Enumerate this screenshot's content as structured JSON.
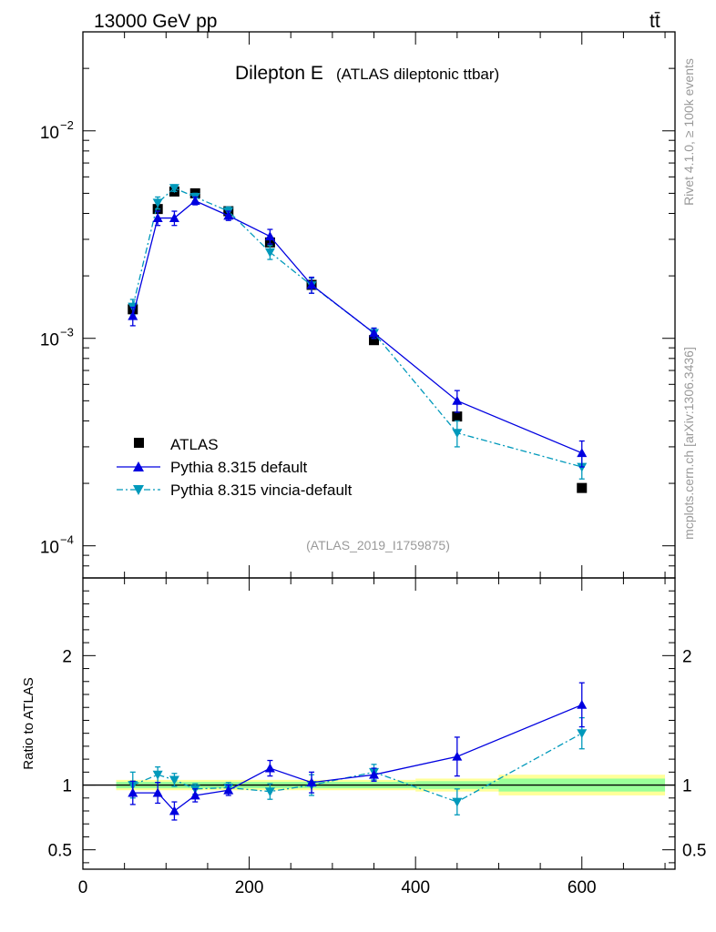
{
  "header": {
    "energy_label": "13000 GeV pp",
    "process_label": "tt̄"
  },
  "side_labels": {
    "rivet": "Rivet 4.1.0, ≥ 100k events",
    "mcplots": "mcplots.cern.ch [arXiv:1306.3436]"
  },
  "chart_data": [
    {
      "panel": "main",
      "type": "scatter",
      "title": "Dilepton E",
      "subtitle": "(ATLAS dileptonic ttbar)",
      "analysis_id": "(ATLAS_2019_I1759875)",
      "yscale": "log",
      "xlim": [
        0,
        712
      ],
      "ylim": [
        7e-05,
        0.03
      ],
      "y_ticks": [
        {
          "value": 0.01,
          "label": "10",
          "exp": "−2"
        },
        {
          "value": 0.001,
          "label": "10",
          "exp": "−3"
        },
        {
          "value": 0.0001,
          "label": "10",
          "exp": "−4"
        }
      ],
      "legend_position": "bottom-left",
      "series": [
        {
          "name": "ATLAS",
          "style": "data",
          "color": "#000000",
          "x": [
            60,
            90,
            110,
            135,
            175,
            225,
            275,
            350,
            450,
            600
          ],
          "y": [
            0.00138,
            0.0042,
            0.0051,
            0.005,
            0.0041,
            0.0029,
            0.00181,
            0.00098,
            0.00042,
            0.00019
          ]
        },
        {
          "name": "Pythia 8.315 default",
          "style": "solid-up",
          "color": "#0000e0",
          "x": [
            60,
            90,
            110,
            135,
            175,
            225,
            275,
            350,
            450,
            600
          ],
          "y": [
            0.00128,
            0.0038,
            0.0038,
            0.0046,
            0.0039,
            0.0031,
            0.00181,
            0.00106,
            0.0005,
            0.00028
          ],
          "err": [
            0.00013,
            0.0003,
            0.0003,
            0.0002,
            0.0002,
            0.00025,
            0.00016,
            6e-05,
            6e-05,
            4e-05
          ]
        },
        {
          "name": "Pythia 8.315 vincia-default",
          "style": "dashdot-down",
          "color": "#0099bb",
          "x": [
            60,
            90,
            110,
            135,
            175,
            225,
            275,
            350,
            450,
            600
          ],
          "y": [
            0.00142,
            0.0045,
            0.0053,
            0.0048,
            0.0041,
            0.0026,
            0.0018,
            0.00106,
            0.00035,
            0.00024
          ],
          "err": [
            0.00012,
            0.0003,
            0.0002,
            0.0002,
            0.0002,
            0.0002,
            0.00015,
            6e-05,
            5e-05,
            3e-05
          ]
        }
      ]
    },
    {
      "panel": "ratio",
      "type": "scatter",
      "ylabel": "Ratio to ATLAS",
      "xlim": [
        0,
        712
      ],
      "ylim": [
        0.35,
        2.6
      ],
      "x_ticks": [
        0,
        200,
        400,
        600
      ],
      "y_ticks": [
        {
          "value": 0.5,
          "label": "0.5"
        },
        {
          "value": 1,
          "label": "1"
        },
        {
          "value": 2,
          "label": "2"
        }
      ],
      "bands": [
        {
          "x0": 40,
          "x1": 400,
          "stat": 0.025,
          "total": 0.04
        },
        {
          "x0": 400,
          "x1": 500,
          "stat": 0.03,
          "total": 0.05
        },
        {
          "x0": 500,
          "x1": 700,
          "stat": 0.05,
          "total": 0.08
        }
      ],
      "series": [
        {
          "name": "Pythia 8.315 default",
          "style": "solid-up",
          "color": "#0000e0",
          "x": [
            60,
            90,
            110,
            135,
            175,
            225,
            275,
            350,
            450,
            600
          ],
          "y": [
            0.94,
            0.94,
            0.8,
            0.92,
            0.96,
            1.13,
            1.02,
            1.08,
            1.22,
            1.62
          ],
          "err": [
            0.09,
            0.08,
            0.07,
            0.05,
            0.04,
            0.06,
            0.08,
            0.05,
            0.15,
            0.17
          ]
        },
        {
          "name": "Pythia 8.315 vincia-default",
          "style": "dashdot-down",
          "color": "#0099bb",
          "x": [
            60,
            90,
            110,
            135,
            175,
            225,
            275,
            350,
            450,
            600
          ],
          "y": [
            1.0,
            1.08,
            1.04,
            0.97,
            0.98,
            0.95,
            1.0,
            1.1,
            0.87,
            1.4
          ],
          "err": [
            0.1,
            0.06,
            0.05,
            0.04,
            0.04,
            0.06,
            0.08,
            0.06,
            0.1,
            0.12
          ]
        }
      ]
    }
  ]
}
